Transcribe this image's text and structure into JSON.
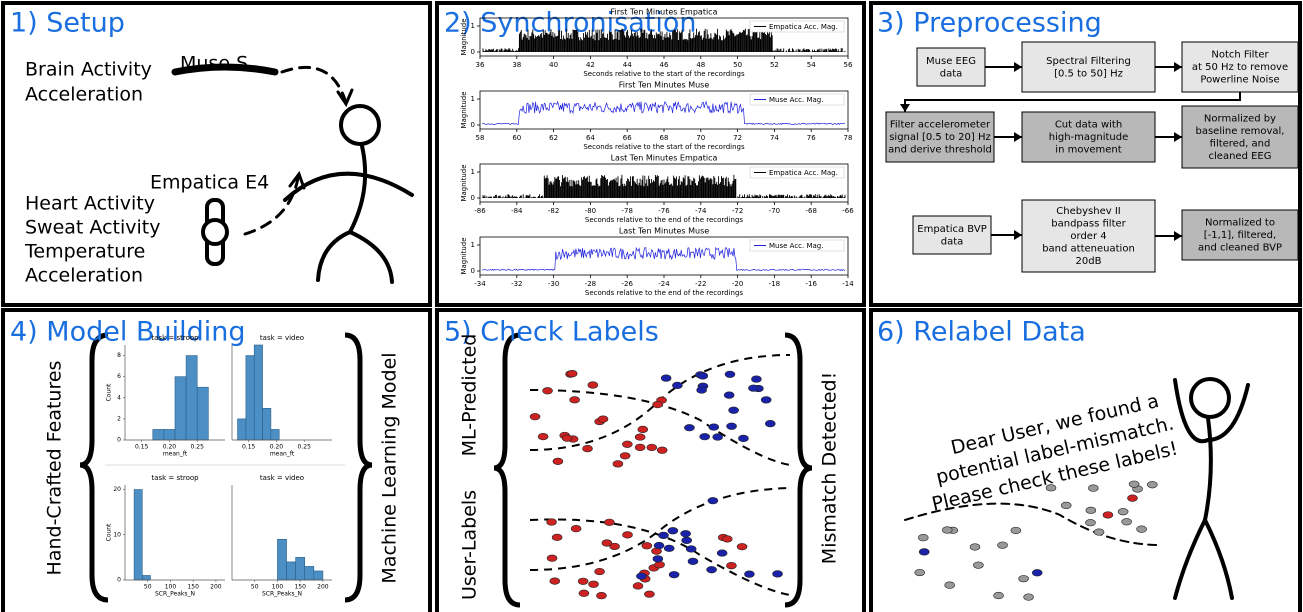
{
  "setup": {
    "title": "1) Setup",
    "device_muse": "Muse S",
    "muse_signals": [
      "Brain Activity",
      "Acceleration"
    ],
    "device_empatica": "Empatica E4",
    "empatica_signals": [
      "Heart Activity",
      "Sweat Activity",
      "Temperature",
      "Acceleration"
    ]
  },
  "sync": {
    "title": "2) Synchronisation",
    "plots": [
      {
        "title": "First Ten Minutes Empatica",
        "legend": "Empatica Acc. Mag.",
        "xlabel": "Seconds relative to the start of the recordings",
        "ylabel": "Magnitude",
        "yticks": [
          0,
          1
        ],
        "xticks": [
          36,
          38,
          40,
          42,
          44,
          46,
          48,
          50,
          52,
          54,
          56
        ]
      },
      {
        "title": "First Ten Minutes Muse",
        "legend": "Muse Acc. Mag.",
        "xlabel": "Seconds relative to the start of the recordings",
        "ylabel": "Magnitude",
        "yticks": [
          0,
          1
        ],
        "xticks": [
          58,
          60,
          62,
          64,
          66,
          68,
          70,
          72,
          74,
          76,
          78
        ]
      },
      {
        "title": "Last Ten Minutes Empatica",
        "legend": "Empatica Acc. Mag.",
        "xlabel": "Seconds relative to the end of the recordings",
        "ylabel": "Magnitude",
        "yticks": [
          0,
          1
        ],
        "xticks": [
          -86,
          -84,
          -82,
          -80,
          -78,
          -76,
          -74,
          -72,
          -70,
          -68,
          -66
        ]
      },
      {
        "title": "Last Ten Minutes Muse",
        "legend": "Muse Acc. Mag.",
        "xlabel": "Seconds relative to the end of the recordings",
        "ylabel": "Magnitude",
        "yticks": [
          0,
          1
        ],
        "xticks": [
          -34,
          -32,
          -30,
          -28,
          -26,
          -24,
          -22,
          -20,
          -18,
          -16,
          -14
        ]
      }
    ]
  },
  "preprocessing": {
    "title": "3) Preprocessing",
    "boxes": [
      {
        "lines": [
          "Muse EEG",
          "data"
        ]
      },
      {
        "lines": [
          "Spectral Filtering",
          "[0.5 to 50] Hz"
        ]
      },
      {
        "lines": [
          "Notch Filter",
          "at 50 Hz to remove",
          "Powerline Noise"
        ]
      },
      {
        "lines": [
          "Filter accelerometer",
          "signal [0.5 to 20] Hz",
          "and derive threshold"
        ]
      },
      {
        "lines": [
          "Cut data with",
          "high-magnitude",
          "in movement"
        ]
      },
      {
        "lines": [
          "Normalized by",
          "baseline removal,",
          "filtered, and",
          "cleaned EEG"
        ]
      },
      {
        "lines": [
          "Empatica BVP",
          "data"
        ]
      },
      {
        "lines": [
          "Chebyshev II",
          "bandpass filter",
          "order 4",
          "band atteneuation",
          "20dB"
        ]
      },
      {
        "lines": [
          "Normalized to",
          "[-1,1], filtered,",
          "and cleaned BVP"
        ]
      }
    ]
  },
  "model": {
    "title": "4) Model Building",
    "left_label": "Hand-Crafted Features",
    "right_label": "Machine Learning Model",
    "plots": [
      {
        "title": "task = stroop",
        "xlabel": "mean_ft",
        "ylabel": "Count",
        "xlim": [
          0.12,
          0.3
        ],
        "ylim": [
          0,
          9
        ],
        "xticks": [
          0.15,
          {
            "value": 0.2,
            "label": "0.20"
          },
          0.25
        ],
        "yticks": [
          0,
          2,
          4,
          6,
          8
        ],
        "bins": [
          0.17,
          0.19,
          0.21,
          0.23,
          0.25,
          0.27
        ],
        "counts": [
          1,
          1,
          6,
          8,
          5
        ]
      },
      {
        "title": "task = video",
        "xlabel": "mean_ft",
        "xlim": [
          0.12,
          0.3
        ],
        "ylim": [
          0,
          9
        ],
        "xticks": [
          0.15,
          {
            "value": 0.2,
            "label": "0.20"
          },
          0.25
        ],
        "bins": [
          0.13,
          0.145,
          0.16,
          0.175,
          0.19,
          0.205
        ],
        "counts": [
          2,
          8,
          9,
          3,
          1
        ]
      },
      {
        "title": "task = stroop",
        "xlabel": "SCR_Peaks_N",
        "ylabel": "Count",
        "xlim": [
          0,
          220
        ],
        "ylim": [
          0,
          21
        ],
        "xticks": [
          50,
          100,
          150,
          200
        ],
        "yticks": [
          0,
          10,
          20
        ],
        "bins": [
          20,
          38,
          56
        ],
        "counts": [
          20,
          1
        ]
      },
      {
        "title": "task = video",
        "xlabel": "SCR_Peaks_N",
        "xlim": [
          0,
          220
        ],
        "ylim": [
          0,
          21
        ],
        "xticks": [
          50,
          100,
          150,
          200
        ],
        "bins": [
          100,
          120,
          140,
          160,
          180,
          200
        ],
        "counts": [
          9,
          4,
          5,
          3,
          2
        ]
      }
    ]
  },
  "check": {
    "title": "5) Check Labels",
    "labels": [
      "User-Labels",
      "ML-Predicted"
    ],
    "result": "Mismatch Detected!"
  },
  "relabel": {
    "title": "6) Relabel Data",
    "message": [
      "Dear User, we found a",
      "potential label-mismatch.",
      "Please check these labels!"
    ]
  }
}
